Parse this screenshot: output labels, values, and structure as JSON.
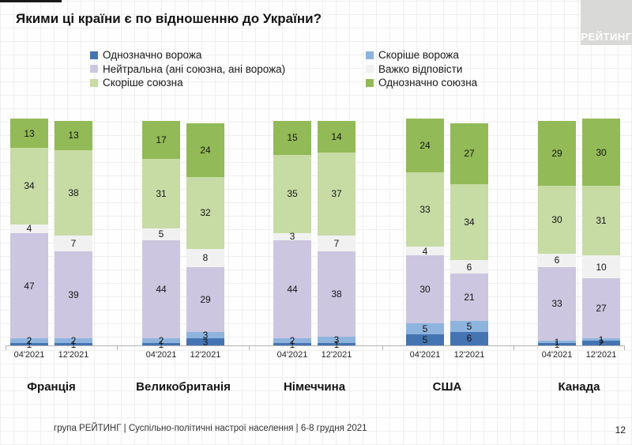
{
  "slide": {
    "title": "Якими ці країни є по відношенню до України?",
    "logo_text": "РЕЙТИНГ",
    "footer": "група РЕЙТИНГ | Суспільно-політичні настрої населення  | 6-8 грудня 2021",
    "page_number": "12"
  },
  "chart_data": {
    "type": "bar",
    "stacked": true,
    "unit": "percent",
    "title": "Якими ці країни є по відношенню до України?",
    "x_tick_labels": [
      "04'2021",
      "12'2021"
    ],
    "legend_position": "top",
    "grid": false,
    "series_names": [
      "Однозначно ворожа",
      "Скоріше ворожа",
      "Нейтральна (ані союзна, ані ворожа)",
      "Важко відповісти",
      "Скоріше союзна",
      "Однозначно союзна"
    ],
    "series_keys": [
      "definitely-hostile",
      "rather-hostile",
      "neutral",
      "hard-to-answer",
      "rather-allied",
      "definitely-allied"
    ],
    "series_colors": [
      "#4574b2",
      "#8eb4de",
      "#cdc6e0",
      "#f1f1f1",
      "#c7dba4",
      "#92ba56"
    ],
    "legend_columns": {
      "left": [
        0,
        2,
        4
      ],
      "right": [
        1,
        3,
        5
      ]
    },
    "groups": [
      {
        "country": "Франція",
        "bars": [
          {
            "period": "04'2021",
            "values": [
              1,
              2,
              47,
              4,
              34,
              13
            ]
          },
          {
            "period": "12'2021",
            "values": [
              1,
              2,
              39,
              7,
              38,
              13
            ]
          }
        ]
      },
      {
        "country": "Великобританія",
        "bars": [
          {
            "period": "04'2021",
            "values": [
              1,
              2,
              44,
              5,
              31,
              17
            ]
          },
          {
            "period": "12'2021",
            "values": [
              3,
              3,
              29,
              8,
              32,
              24
            ]
          }
        ]
      },
      {
        "country": "Німеччина",
        "bars": [
          {
            "period": "04'2021",
            "values": [
              1,
              2,
              44,
              3,
              35,
              15
            ]
          },
          {
            "period": "12'2021",
            "values": [
              1,
              3,
              38,
              7,
              37,
              14
            ]
          }
        ]
      },
      {
        "country": "США",
        "bars": [
          {
            "period": "04'2021",
            "values": [
              5,
              5,
              30,
              4,
              33,
              24
            ]
          },
          {
            "period": "12'2021",
            "values": [
              6,
              5,
              21,
              6,
              34,
              27
            ]
          }
        ]
      },
      {
        "country": "Канада",
        "bars": [
          {
            "period": "04'2021",
            "values": [
              1,
              1,
              33,
              6,
              30,
              29
            ]
          },
          {
            "period": "12'2021",
            "values": [
              2,
              1,
              27,
              10,
              31,
              30
            ]
          }
        ]
      }
    ]
  }
}
